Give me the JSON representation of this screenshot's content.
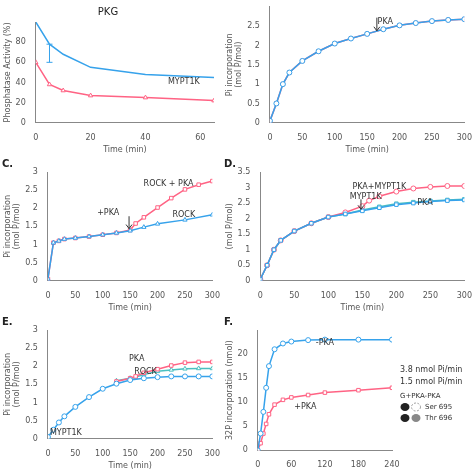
{
  "chart_data": [
    {
      "type": "line",
      "title": "PKG",
      "xlabel": "Time (min)",
      "ylabel": "Phosphatase Activity (%)",
      "xlim": [
        0,
        65
      ],
      "ylim": [
        0,
        100
      ],
      "xticks": [
        0,
        20,
        40,
        60
      ],
      "yticks": [
        0,
        20,
        40,
        60,
        80
      ],
      "grid": false,
      "series": [
        {
          "marker": "none",
          "x": [
            0,
            5,
            10,
            20,
            40,
            65
          ],
          "values": [
            100,
            78,
            68,
            55,
            48,
            45
          ],
          "error_bars": [
            {
              "x": 5,
              "y": 78,
              "minus": 18,
              "plus": 0
            }
          ]
        },
        {
          "marker": "triangle",
          "x": [
            0,
            5,
            10,
            20,
            40,
            65
          ],
          "values": [
            60,
            38,
            32,
            27,
            25,
            22
          ]
        }
      ],
      "annotations": [
        {
          "text": "MYPT1K"
        }
      ]
    },
    {
      "type": "line",
      "xlabel": "Time (min)",
      "ylabel": "Pi incorporation\n(mol P/mol)",
      "xlim": [
        0,
        300
      ],
      "ylim": [
        0,
        3.0
      ],
      "xticks": [
        0,
        50,
        100,
        150,
        200,
        250,
        300
      ],
      "yticks": [
        0.0,
        0.5,
        1.0,
        1.5,
        2.0,
        2.5
      ],
      "grid": false,
      "series": [
        {
          "marker": "circle",
          "x": [
            0,
            10,
            20,
            30,
            50,
            75,
            100,
            125,
            150,
            175,
            200,
            225,
            250,
            275,
            300
          ],
          "values": [
            0.05,
            0.5,
            1.0,
            1.3,
            1.6,
            1.85,
            2.05,
            2.18,
            2.3,
            2.42,
            2.52,
            2.58,
            2.63,
            2.66,
            2.68
          ]
        },
        {
          "marker": "square",
          "x": [
            0,
            10,
            20,
            30,
            50,
            75,
            100,
            125,
            150,
            175,
            200,
            225,
            250,
            275,
            300
          ],
          "values": [
            0.05,
            0.5,
            1.0,
            1.3,
            1.6,
            1.85,
            2.05,
            2.18,
            2.3,
            2.42,
            2.52,
            2.58,
            2.63,
            2.66,
            2.68
          ]
        }
      ],
      "arrows": [
        {
          "x": 165,
          "from": 2.72,
          "to": 2.38
        }
      ],
      "annotations": [
        {
          "text": "PKA",
          "x": 178,
          "y": 2.56
        }
      ]
    },
    {
      "type": "line",
      "panel_label": "C.",
      "xlabel": "Time (min)",
      "ylabel": "Pi incorporation\n(mol P/mol)",
      "xlim": [
        0,
        300
      ],
      "ylim": [
        0,
        3.0
      ],
      "xticks": [
        0,
        50,
        100,
        150,
        200,
        250,
        300
      ],
      "yticks": [
        0.0,
        0.5,
        1.0,
        1.5,
        2.0,
        2.5,
        3.0
      ],
      "grid": false,
      "series": [
        {
          "marker": "triangle",
          "x": [
            0,
            10,
            20,
            30,
            50,
            75,
            100,
            125,
            150,
            175,
            200,
            250,
            300
          ],
          "values": [
            0.05,
            1.05,
            1.1,
            1.15,
            1.18,
            1.22,
            1.27,
            1.32,
            1.38,
            1.48,
            1.57,
            1.68,
            1.82
          ]
        },
        {
          "marker": "square",
          "x": [
            0,
            10,
            20,
            30,
            50,
            75,
            100,
            125,
            150,
            160,
            175,
            200,
            225,
            250,
            275,
            300
          ],
          "values": [
            0.05,
            1.05,
            1.1,
            1.15,
            1.18,
            1.22,
            1.27,
            1.32,
            1.4,
            1.58,
            1.75,
            2.02,
            2.28,
            2.52,
            2.65,
            2.75
          ]
        }
      ],
      "arrows": [
        {
          "x": 148,
          "from": 1.78,
          "to": 1.44
        }
      ],
      "annotations": [
        {
          "text": "+PKA",
          "x": 110,
          "y": 1.82
        },
        {
          "text": "ROCK + PKA",
          "x": 220,
          "y": 2.62
        },
        {
          "text": "ROCK",
          "x": 248,
          "y": 1.75
        }
      ]
    },
    {
      "type": "line",
      "panel_label": "D.",
      "xlabel": "Time (min)",
      "ylabel": "(mol P/mol)",
      "xlim": [
        0,
        300
      ],
      "ylim": [
        0,
        3.5
      ],
      "xticks": [
        0,
        50,
        100,
        150,
        200,
        250,
        300
      ],
      "yticks": [
        0.0,
        0.5,
        1.0,
        1.5,
        2.0,
        2.5,
        3.0,
        3.5
      ],
      "grid": false,
      "series": [
        {
          "marker": "square",
          "x": [
            0,
            10,
            20,
            30,
            50,
            75,
            100,
            125,
            150,
            175,
            200,
            225,
            250,
            275,
            300
          ],
          "values": [
            0.05,
            0.5,
            1.0,
            1.3,
            1.6,
            1.85,
            2.05,
            2.15,
            2.25,
            2.35,
            2.45,
            2.5,
            2.55,
            2.58,
            2.6
          ]
        },
        {
          "marker": "circle",
          "x": [
            0,
            10,
            20,
            30,
            50,
            75,
            100,
            125,
            150,
            160,
            175,
            200,
            225,
            250,
            275,
            300
          ],
          "values": [
            0.05,
            0.5,
            1.0,
            1.3,
            1.6,
            1.85,
            2.05,
            2.2,
            2.4,
            2.58,
            2.72,
            2.87,
            2.97,
            3.02,
            3.05,
            3.05
          ]
        },
        {
          "marker": "square",
          "x": [
            0,
            10,
            20,
            30,
            50,
            75,
            100,
            125,
            150,
            175,
            200,
            225,
            250,
            275,
            300
          ],
          "values": [
            0.05,
            0.5,
            1.0,
            1.3,
            1.6,
            1.85,
            2.05,
            2.15,
            2.28,
            2.38,
            2.48,
            2.53,
            2.57,
            2.6,
            2.62
          ]
        }
      ],
      "arrows": [
        {
          "x": 148,
          "from": 2.62,
          "to": 2.3
        }
      ],
      "annotations": [
        {
          "text": "PKA+MYPT1K",
          "x": 175,
          "y": 2.95
        },
        {
          "text": "MYPT1K",
          "x": 155,
          "y": 2.62
        },
        {
          "text": "PKA",
          "x": 242,
          "y": 2.45
        }
      ]
    },
    {
      "type": "line",
      "panel_label": "E.",
      "xlabel": "Time (min)",
      "ylabel": "Pi incorporation\n(mol P/mol)",
      "xlim": [
        0,
        300
      ],
      "ylim": [
        0,
        3.0
      ],
      "xticks": [
        0,
        50,
        100,
        150,
        200,
        250,
        300
      ],
      "yticks": [
        0.0,
        0.5,
        1.0,
        1.5,
        2.0,
        2.5,
        3.0
      ],
      "grid": false,
      "series": [
        {
          "marker": "circle",
          "x": [
            0,
            10,
            20,
            30,
            50,
            75,
            100,
            125,
            150,
            175,
            200,
            225,
            250,
            275,
            300
          ],
          "values": [
            0.05,
            0.25,
            0.45,
            0.62,
            0.88,
            1.15,
            1.38,
            1.52,
            1.62,
            1.67,
            1.7,
            1.72,
            1.72,
            1.72,
            1.72
          ]
        },
        {
          "marker": "square",
          "x": [
            125,
            150,
            160,
            175,
            200,
            225,
            250,
            275,
            300
          ],
          "values": [
            1.58,
            1.67,
            1.72,
            1.82,
            1.92,
            2.02,
            2.1,
            2.12,
            2.12
          ]
        },
        {
          "marker": "triangle",
          "x": [
            125,
            150,
            160,
            175,
            200,
            225,
            250,
            275,
            300
          ],
          "values": [
            1.6,
            1.67,
            1.7,
            1.77,
            1.86,
            1.9,
            1.93,
            1.94,
            1.94
          ]
        }
      ],
      "annotations": [
        {
          "text": "PKA",
          "x": 162,
          "y": 2.14
        },
        {
          "text": "ROCK",
          "x": 178,
          "y": 1.8
        },
        {
          "text": "MYPT1K",
          "x": 18,
          "y": 0.1
        }
      ]
    },
    {
      "type": "line",
      "panel_label": "F.",
      "ylabel": "32P incorporation (nmol)",
      "xlim": [
        0,
        240
      ],
      "ylim": [
        0,
        25
      ],
      "xticks": [
        0,
        60,
        120,
        180,
        240
      ],
      "yticks": [
        0,
        5,
        10,
        15,
        20
      ],
      "grid": false,
      "series": [
        {
          "marker": "circle",
          "x": [
            0,
            5,
            10,
            15,
            20,
            30,
            45,
            60,
            90,
            120,
            180,
            240
          ],
          "values": [
            0,
            3.5,
            8,
            13,
            17.5,
            21,
            22.2,
            22.6,
            22.9,
            23,
            23,
            23
          ]
        },
        {
          "marker": "square",
          "x": [
            0,
            5,
            10,
            15,
            20,
            30,
            45,
            60,
            90,
            120,
            180,
            240
          ],
          "values": [
            0,
            1.5,
            3.5,
            5.5,
            7.5,
            9.5,
            10.5,
            11,
            11.5,
            12,
            12.5,
            13
          ]
        }
      ],
      "annotations": [
        {
          "text": "-PKA",
          "x": 120,
          "y": 21.8
        },
        {
          "text": "+PKA",
          "x": 85,
          "y": 8.5
        }
      ],
      "rate_labels": [
        "3.8 nmol Pi/min",
        "1.5 nmol Pi/min"
      ],
      "inset_title": "G+PKA-PKA",
      "inset_labels": [
        "Ser 695",
        "Thr 696"
      ]
    }
  ]
}
